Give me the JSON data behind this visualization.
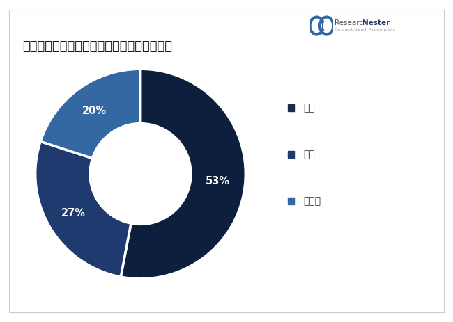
{
  "title": "血液透析と腹膜透析市場一タイプによる分類",
  "slices": [
    53,
    27,
    20
  ],
  "labels": [
    "53%",
    "27%",
    "20%"
  ],
  "colors": [
    "#0d1f3c",
    "#1e3a6e",
    "#3468a3"
  ],
  "legend_labels": [
    "従来",
    "毎日",
    "夜間性"
  ],
  "legend_colors": [
    "#1a2e4a",
    "#1e3a6e",
    "#3468a3"
  ],
  "background_color": "#ffffff",
  "title_fontsize": 13,
  "label_fontsize": 10.5,
  "legend_fontsize": 10
}
